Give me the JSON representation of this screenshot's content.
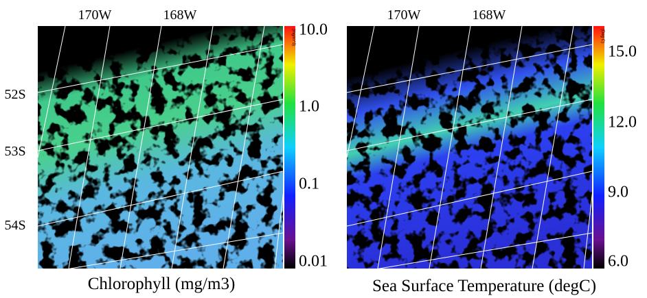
{
  "panels": [
    {
      "longitude_labels": [
        "170W",
        "168W"
      ],
      "latitude_labels": [
        "52S",
        "53S",
        "54S"
      ],
      "colorbar": {
        "unit": "(mg/m^3)",
        "ticks": [
          "10.0",
          "1.0",
          "0.1",
          "0.01"
        ]
      },
      "caption": "Chlorophyll (mg/m3)"
    },
    {
      "longitude_labels": [
        "170W",
        "168W"
      ],
      "colorbar": {
        "unit": "(Deg C)",
        "ticks": [
          "15.0",
          "12.0",
          "9.0",
          "6.0"
        ]
      },
      "caption": "Sea Surface Temperature (degC)"
    }
  ]
}
